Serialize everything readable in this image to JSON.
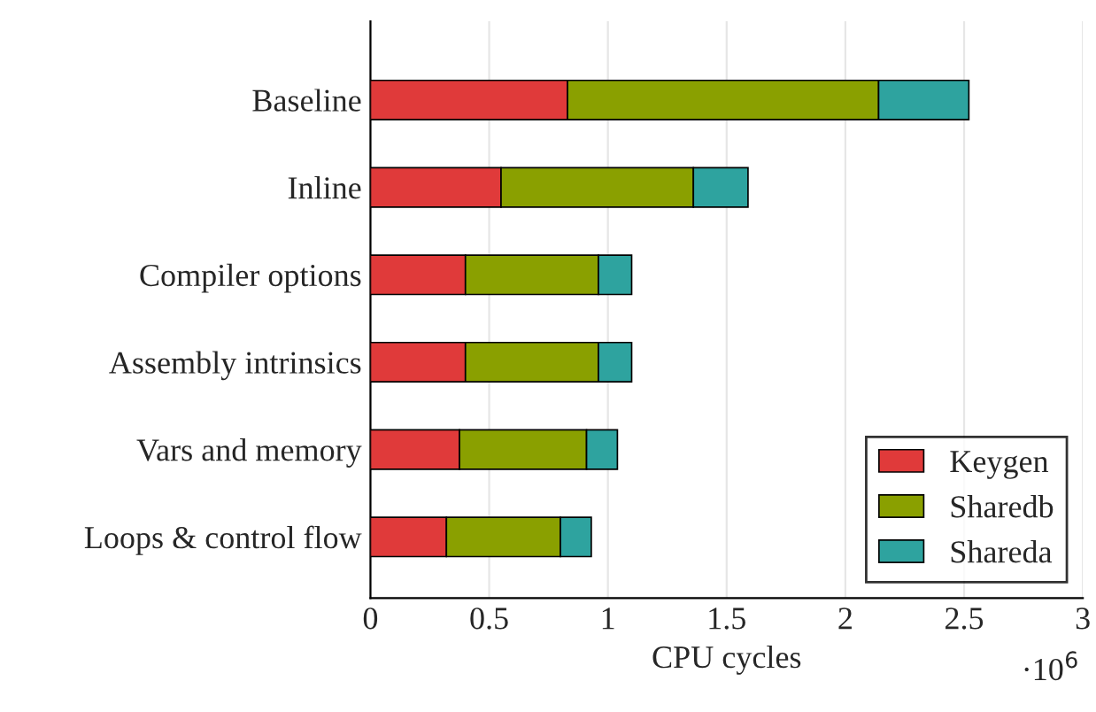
{
  "chart_data": {
    "type": "bar",
    "orientation": "horizontal",
    "stacked": true,
    "categories": [
      "Baseline",
      "Inline",
      "Compiler options",
      "Assembly intrinsics",
      "Vars and memory",
      "Loops & control flow"
    ],
    "series": [
      {
        "name": "Keygen",
        "color": "#e03a3a",
        "values": [
          0.83,
          0.55,
          0.4,
          0.4,
          0.375,
          0.32
        ]
      },
      {
        "name": "Sharedb",
        "color": "#8aa000",
        "values": [
          1.31,
          0.81,
          0.56,
          0.56,
          0.535,
          0.48
        ]
      },
      {
        "name": "Shareda",
        "color": "#2ea39f",
        "values": [
          0.38,
          0.23,
          0.14,
          0.14,
          0.13,
          0.13
        ]
      }
    ],
    "xlabel": "CPU cycles",
    "xlim": [
      0,
      3
    ],
    "xticks": [
      0,
      0.5,
      1,
      1.5,
      2,
      2.5,
      3
    ],
    "annotations": [
      "·10$^{6}$"
    ],
    "grid": "x",
    "legend": "bottom right"
  }
}
